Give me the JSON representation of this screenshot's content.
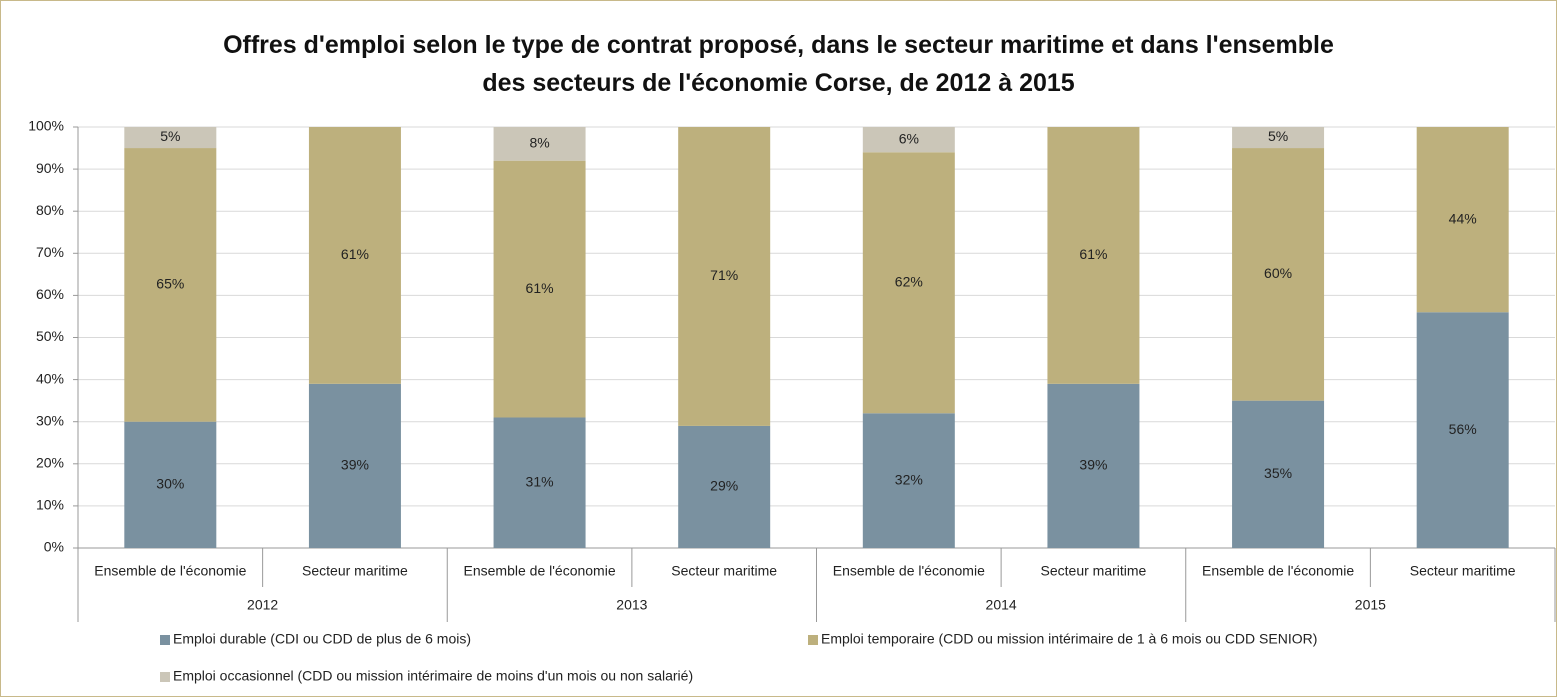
{
  "chart_data": {
    "type": "stacked_bar",
    "title": "Offres d'emploi selon le type de contrat proposé, dans le secteur maritime et dans l'ensemble des secteurs de l'économie Corse, de 2012 à 2015",
    "categories": [
      "Ensemble de l'économie",
      "Secteur maritime",
      "Ensemble de l'économie",
      "Secteur maritime",
      "Ensemble de l'économie",
      "Secteur maritime",
      "Ensemble de l'économie",
      "Secteur maritime"
    ],
    "groups": [
      "2012",
      "2013",
      "2014",
      "2015"
    ],
    "series": [
      {
        "name": "Emploi durable (CDI ou CDD de plus de 6 mois)",
        "color": "#7a91a0",
        "values": [
          30,
          39,
          31,
          29,
          32,
          39,
          35,
          56
        ],
        "value_labels": [
          "30%",
          "39%",
          "31%",
          "29%",
          "32%",
          "39%",
          "35%",
          "56%"
        ]
      },
      {
        "name": "Emploi temporaire (CDD ou mission intérimaire de 1 à 6 mois ou CDD SENIOR)",
        "color": "#bdb07d",
        "values": [
          65,
          61,
          61,
          71,
          62,
          61,
          60,
          44
        ],
        "value_labels": [
          "65%",
          "61%",
          "61%",
          "71%",
          "62%",
          "61%",
          "60%",
          "44%"
        ]
      },
      {
        "name": "Emploi occasionnel (CDD ou mission intérimaire de moins d'un mois ou non salarié)",
        "color": "#cbc6b8",
        "values": [
          5,
          null,
          8,
          null,
          6,
          null,
          5,
          null
        ],
        "value_labels": [
          "5%",
          null,
          "8%",
          null,
          "6%",
          null,
          "5%",
          null
        ]
      }
    ],
    "ylim": [
      0,
      100
    ],
    "yticks": [
      {
        "value": 0,
        "label": "0%"
      },
      {
        "value": 10,
        "label": "10%"
      },
      {
        "value": 20,
        "label": "20%"
      },
      {
        "value": 30,
        "label": "30%"
      },
      {
        "value": 40,
        "label": "40%"
      },
      {
        "value": 50,
        "label": "50%"
      },
      {
        "value": 60,
        "label": "60%"
      },
      {
        "value": 70,
        "label": "70%"
      },
      {
        "value": 80,
        "label": "80%"
      },
      {
        "value": 90,
        "label": "90%"
      },
      {
        "value": 100,
        "label": "100%"
      }
    ],
    "grid": true,
    "legend": "bottom"
  }
}
